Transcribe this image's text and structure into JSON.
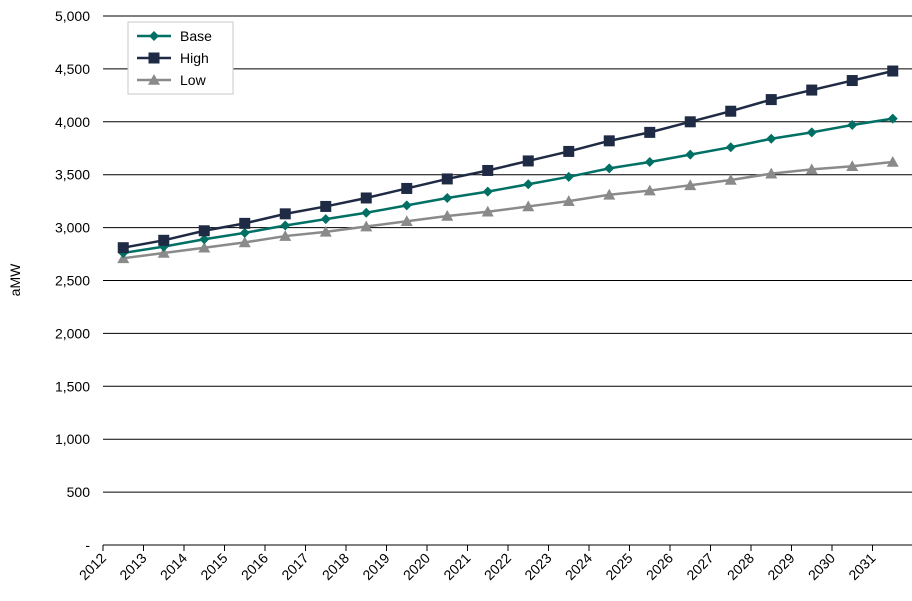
{
  "chart_data": {
    "type": "line",
    "title": "",
    "xlabel": "",
    "ylabel": "aMW",
    "ylim": [
      0,
      5000
    ],
    "y_ticks": [
      0,
      500,
      1000,
      1500,
      2000,
      2500,
      3000,
      3500,
      4000,
      4500,
      5000
    ],
    "y_tick_labels": [
      "-",
      "500",
      "1,000",
      "1,500",
      "2,000",
      "2,500",
      "3,000",
      "3,500",
      "4,000",
      "4,500",
      "5,000"
    ],
    "x_tick_labels": [
      "2012",
      "2013",
      "2014",
      "2015",
      "2016",
      "2017",
      "2018",
      "2019",
      "2020",
      "2021",
      "2022",
      "2023",
      "2024",
      "2025",
      "2026",
      "2027",
      "2028",
      "2029",
      "2030",
      "2031"
    ],
    "categories": [
      "2012",
      "2013",
      "2014",
      "2015",
      "2016",
      "2017",
      "2018",
      "2019",
      "2020",
      "2021",
      "2022",
      "2023",
      "2024",
      "2025",
      "2026",
      "2027",
      "2028",
      "2029",
      "2030",
      "2031"
    ],
    "grid": "horizontal",
    "legend_position": "top-left",
    "series": [
      {
        "name": "Base",
        "color": "#007065",
        "marker": "diamond",
        "values": [
          2760,
          2820,
          2890,
          2950,
          3020,
          3080,
          3140,
          3210,
          3280,
          3340,
          3410,
          3480,
          3560,
          3620,
          3690,
          3760,
          3840,
          3900,
          3970,
          4030
        ]
      },
      {
        "name": "High",
        "color": "#1f2a44",
        "marker": "square",
        "values": [
          2810,
          2880,
          2970,
          3040,
          3130,
          3200,
          3280,
          3370,
          3460,
          3540,
          3630,
          3720,
          3820,
          3900,
          4000,
          4100,
          4210,
          4300,
          4390,
          4480
        ]
      },
      {
        "name": "Low",
        "color": "#8a8a8a",
        "marker": "triangle",
        "values": [
          2710,
          2760,
          2810,
          2860,
          2920,
          2960,
          3010,
          3060,
          3110,
          3150,
          3200,
          3250,
          3310,
          3350,
          3400,
          3450,
          3510,
          3550,
          3580,
          3620
        ]
      }
    ]
  }
}
